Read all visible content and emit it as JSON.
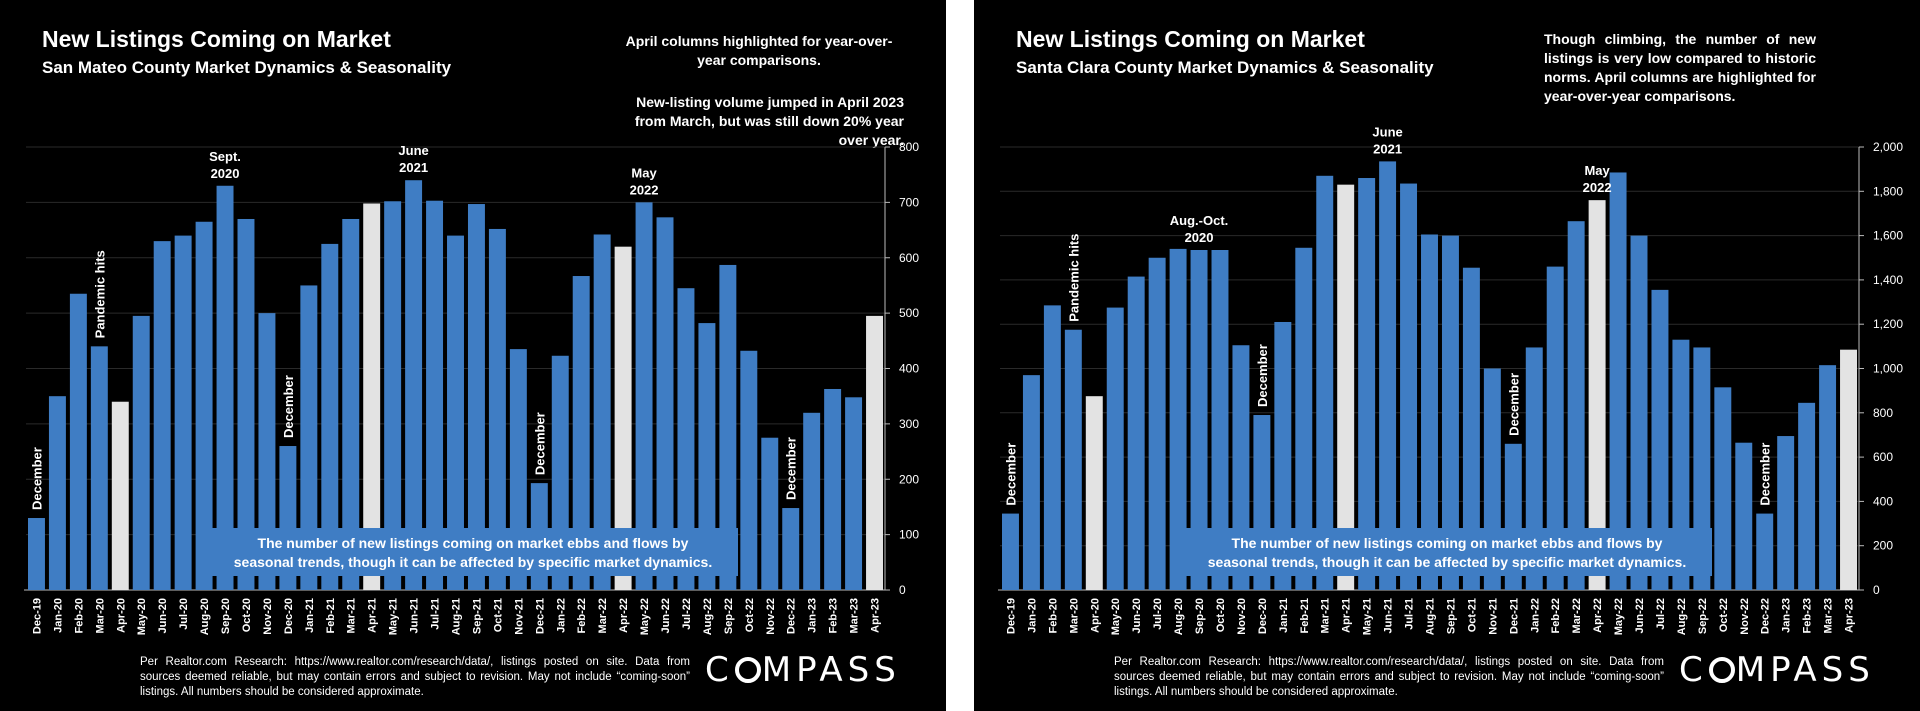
{
  "colors": {
    "background": "#000000",
    "bar": "#3f7dc4",
    "highlight": "#e3e3e3",
    "text": "#ffffff",
    "callout_box": "#3f7dc4",
    "axis": "#bbbbbb",
    "grid": "#2a2a2a"
  },
  "logo": "COMPASS",
  "footnote": "Per Realtor.com Research: https://www.realtor.com/research/data/, listings posted on site. Data from sources deemed reliable, but may contain errors and subject to revision. May not include “coming-soon” listings. All numbers should be considered approximate.",
  "chart_data": [
    {
      "type": "bar",
      "title": "New Listings Coming on Market",
      "subtitle": "San Mateo County Market Dynamics & Seasonality",
      "notes": [
        "April columns highlighted for year-over-year comparisons.",
        "New-listing volume jumped in April 2023 from March, but was still down 20% year over year."
      ],
      "callout": [
        "The number of new listings coming on market ebbs and flows by",
        "seasonal trends, though it can be affected by specific market dynamics."
      ],
      "categories": [
        "Dec-19",
        "Jan-20",
        "Feb-20",
        "Mar-20",
        "Apr-20",
        "May-20",
        "Jun-20",
        "Jul-20",
        "Aug-20",
        "Sep-20",
        "Oct-20",
        "Nov-20",
        "Dec-20",
        "Jan-21",
        "Feb-21",
        "Mar-21",
        "Apr-21",
        "May-21",
        "Jun-21",
        "Jul-21",
        "Aug-21",
        "Sep-21",
        "Oct-21",
        "Nov-21",
        "Dec-21",
        "Jan-22",
        "Feb-22",
        "Mar-22",
        "Apr-22",
        "May-22",
        "Jun-22",
        "Jul-22",
        "Aug-22",
        "Sep-22",
        "Oct-22",
        "Nov-22",
        "Dec-22",
        "Jan-23",
        "Feb-23",
        "Mar-23",
        "Apr-23"
      ],
      "values": [
        130,
        350,
        535,
        440,
        340,
        495,
        630,
        640,
        665,
        730,
        670,
        500,
        260,
        550,
        625,
        670,
        698,
        702,
        740,
        703,
        640,
        697,
        652,
        435,
        193,
        423,
        567,
        642,
        620,
        700,
        673,
        545,
        482,
        587,
        432,
        275,
        148,
        320,
        363,
        348,
        495
      ],
      "highlighted": [
        "Apr-20",
        "Apr-21",
        "Apr-22",
        "Apr-23"
      ],
      "ylim": [
        0,
        800
      ],
      "yticks": [
        0,
        100,
        200,
        300,
        400,
        500,
        600,
        700,
        800
      ],
      "ytick_labels": [
        "0",
        "100",
        "200",
        "300",
        "400",
        "500",
        "600",
        "700",
        "800"
      ],
      "annotations": [
        {
          "category": "Dec-19",
          "text": "December",
          "rotated": true
        },
        {
          "category": "Mar-20",
          "text": "Pandemic hits",
          "rotated": true
        },
        {
          "category": "Sep-20",
          "text": "Sept. 2020",
          "lines": [
            "Sept.",
            "2020"
          ],
          "rotated": false
        },
        {
          "category": "Dec-20",
          "text": "December",
          "rotated": true
        },
        {
          "category": "Jun-21",
          "text": "June 2021",
          "lines": [
            "June",
            "2021"
          ],
          "rotated": false
        },
        {
          "category": "Dec-21",
          "text": "December",
          "rotated": true
        },
        {
          "category": "May-22",
          "text": "May 2022",
          "lines": [
            "May",
            "2022"
          ],
          "rotated": false
        },
        {
          "category": "Dec-22",
          "text": "December",
          "rotated": true
        }
      ]
    },
    {
      "type": "bar",
      "title": "New Listings Coming on Market",
      "subtitle": "Santa Clara County Market Dynamics & Seasonality",
      "notes": [
        "Though climbing, the number of new listings is very low compared to historic norms. April columns are highlighted for year-over-year comparisons."
      ],
      "callout": [
        "The number of new listings coming on market ebbs and flows by",
        "seasonal trends, though it can be affected by specific market dynamics."
      ],
      "categories": [
        "Dec-19",
        "Jan-20",
        "Feb-20",
        "Mar-20",
        "Apr-20",
        "May-20",
        "Jun-20",
        "Jul-20",
        "Aug-20",
        "Sep-20",
        "Oct-20",
        "Nov-20",
        "Dec-20",
        "Jan-21",
        "Feb-21",
        "Mar-21",
        "Apr-21",
        "May-21",
        "Jun-21",
        "Jul-21",
        "Aug-21",
        "Sep-21",
        "Oct-21",
        "Nov-21",
        "Dec-21",
        "Jan-22",
        "Feb-22",
        "Mar-22",
        "Apr-22",
        "May-22",
        "Jun-22",
        "Jul-22",
        "Aug-22",
        "Sep-22",
        "Oct-22",
        "Nov-22",
        "Dec-22",
        "Jan-23",
        "Feb-23",
        "Mar-23",
        "Apr-23"
      ],
      "values": [
        345,
        970,
        1285,
        1175,
        875,
        1275,
        1415,
        1500,
        1540,
        1535,
        1535,
        1105,
        790,
        1210,
        1545,
        1870,
        1830,
        1860,
        1935,
        1835,
        1605,
        1600,
        1455,
        1000,
        660,
        1095,
        1460,
        1665,
        1760,
        1885,
        1600,
        1355,
        1130,
        1095,
        915,
        665,
        345,
        695,
        845,
        1015,
        1085
      ],
      "highlighted": [
        "Apr-20",
        "Apr-21",
        "Apr-22",
        "Apr-23"
      ],
      "ylim": [
        0,
        2000
      ],
      "yticks": [
        0,
        200,
        400,
        600,
        800,
        1000,
        1200,
        1400,
        1600,
        1800,
        2000
      ],
      "ytick_labels": [
        "0",
        "200",
        "400",
        "600",
        "800",
        "1,000",
        "1,200",
        "1,400",
        "1,600",
        "1,800",
        "2,000"
      ],
      "annotations": [
        {
          "category": "Dec-19",
          "text": "December",
          "rotated": true
        },
        {
          "category": "Mar-20",
          "text": "Pandemic hits",
          "rotated": true
        },
        {
          "category": "Sep-20",
          "text": "Aug.-Oct. 2020",
          "lines": [
            "Aug.-Oct.",
            "2020"
          ],
          "rotated": false
        },
        {
          "category": "Dec-20",
          "text": "December",
          "rotated": true
        },
        {
          "category": "Jun-21",
          "text": "June 2021",
          "lines": [
            "June",
            "2021"
          ],
          "rotated": false
        },
        {
          "category": "Dec-21",
          "text": "December",
          "rotated": true
        },
        {
          "category": "Apr-22",
          "text": "May 2022",
          "lines": [
            "May",
            "2022"
          ],
          "rotated": false
        },
        {
          "category": "Dec-22",
          "text": "December",
          "rotated": true
        }
      ]
    }
  ]
}
